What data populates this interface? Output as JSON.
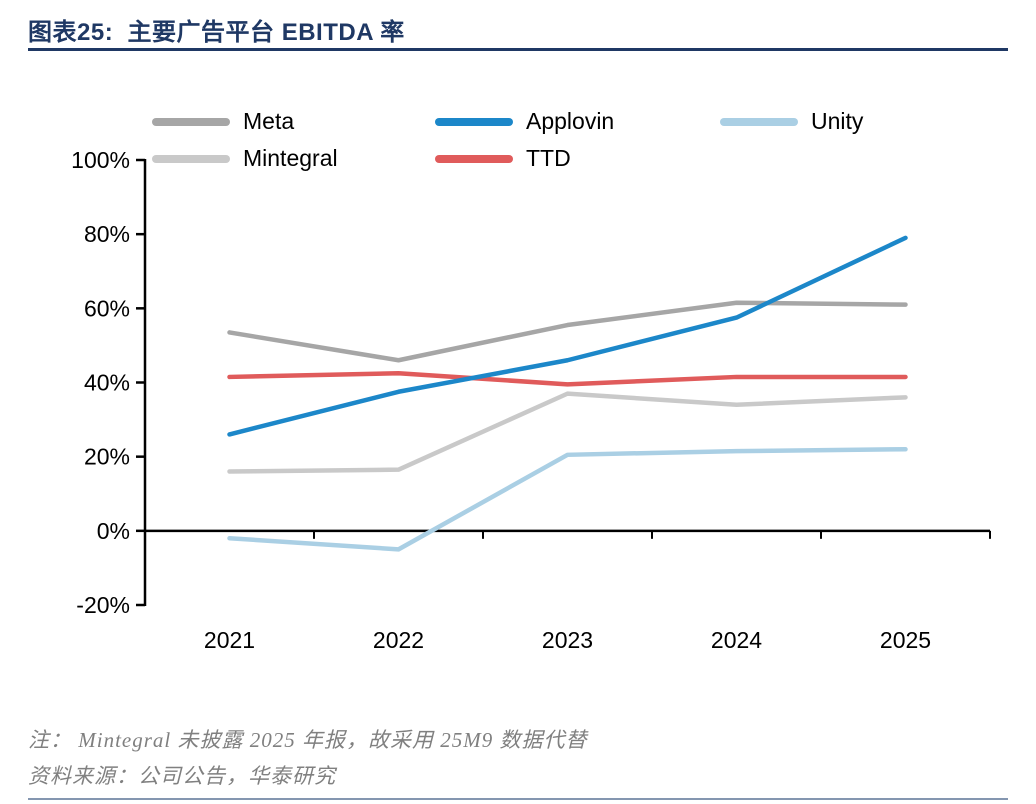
{
  "header": {
    "title": "图表25:  主要广告平台 EBITDA 率"
  },
  "notes": {
    "note1": "注： Mintegral 未披露 2025 年报，故采用 25M9 数据代替",
    "note2": "资料来源：公司公告，华泰研究"
  },
  "colors": {
    "title_text": "#1F3864",
    "title_rule": "#1F3864",
    "bottom_rule": "#8496B0",
    "note_text": "#808080",
    "axis": "#000000"
  },
  "chart_data": {
    "type": "line",
    "title": "主要广告平台 EBITDA 率",
    "xlabel": "",
    "ylabel": "",
    "categories": [
      "2021",
      "2022",
      "2023",
      "2024",
      "2025"
    ],
    "series": [
      {
        "name": "Meta",
        "color": "#A6A6A6",
        "values": [
          53.5,
          46,
          55.5,
          61.5,
          61
        ]
      },
      {
        "name": "Applovin",
        "color": "#1C87C9",
        "values": [
          26,
          37.5,
          46,
          57.5,
          79
        ]
      },
      {
        "name": "Unity",
        "color": "#AACFE4",
        "values": [
          -2,
          -5,
          20.5,
          21.5,
          22
        ]
      },
      {
        "name": "Mintegral",
        "color": "#C9C9C9",
        "values": [
          16,
          16.5,
          37,
          34,
          36
        ]
      },
      {
        "name": "TTD",
        "color": "#E05B5B",
        "values": [
          41.5,
          42.5,
          39.5,
          41.5,
          41.5
        ]
      }
    ],
    "ylim": [
      -20,
      100
    ],
    "ytick_step": 20,
    "ytick_labels": [
      "100%",
      "80%",
      "60%",
      "40%",
      "20%",
      "0%",
      "-20%"
    ],
    "legend_position": "top",
    "grid": false,
    "draw_order": [
      "Unity",
      "Mintegral",
      "Meta",
      "TTD",
      "Applovin"
    ]
  }
}
